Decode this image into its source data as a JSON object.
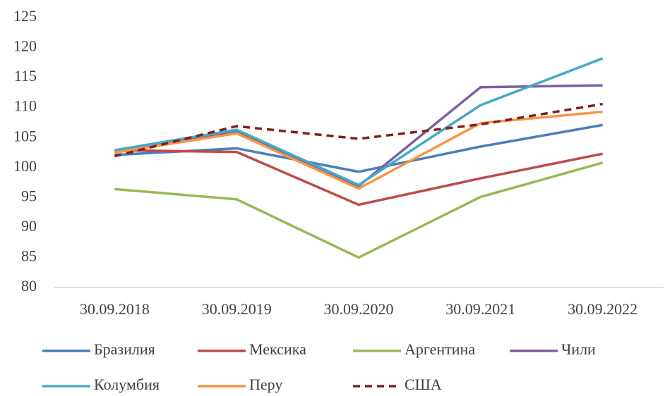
{
  "chart_data": {
    "type": "line",
    "categories": [
      "30.09.2018",
      "30.09.2019",
      "30.09.2020",
      "30.09.2021",
      "30.09.2022"
    ],
    "series": [
      {
        "name": "Бразилия",
        "color": "#4a7ebb",
        "values": [
          102.1,
          103.2,
          99.3,
          103.5,
          107.1
        ]
      },
      {
        "name": "Мексика",
        "color": "#be4b48",
        "values": [
          102.9,
          102.6,
          93.8,
          98.2,
          102.3
        ]
      },
      {
        "name": "Аргентина",
        "color": "#98b954",
        "values": [
          96.4,
          94.7,
          85.0,
          95.1,
          100.8
        ]
      },
      {
        "name": "Чили",
        "color": "#7d60a0",
        "values": [
          102.6,
          106.0,
          96.9,
          113.4,
          113.7
        ]
      },
      {
        "name": "Колумбия",
        "color": "#46aac5",
        "values": [
          102.9,
          106.3,
          97.1,
          110.4,
          118.2
        ]
      },
      {
        "name": "Перу",
        "color": "#f79646",
        "values": [
          102.5,
          105.7,
          96.5,
          107.4,
          109.3
        ]
      },
      {
        "name": "США",
        "color": "#7f1f1f",
        "dashed": true,
        "values": [
          101.9,
          106.9,
          104.8,
          107.2,
          110.6
        ]
      }
    ],
    "ylim": [
      80,
      125
    ],
    "yticks": [
      80,
      85,
      90,
      95,
      100,
      105,
      110,
      115,
      120,
      125
    ],
    "grid": false,
    "legend": "bottom"
  }
}
